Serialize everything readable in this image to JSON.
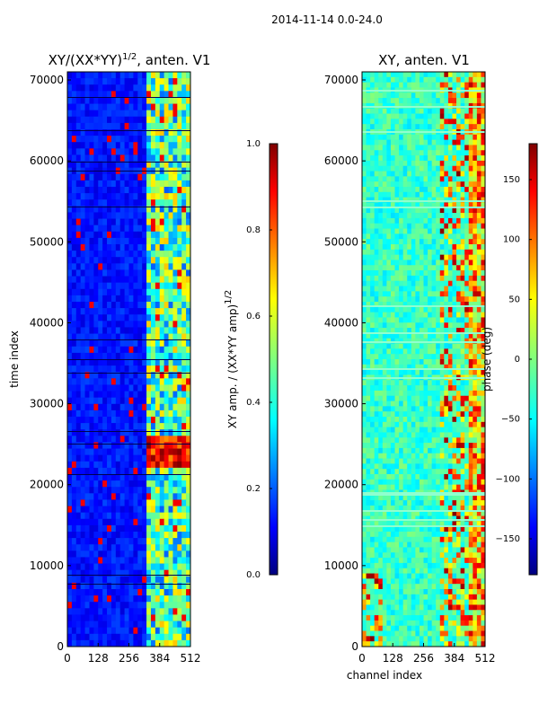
{
  "figure": {
    "suptitle": "2014-11-14 0.0-24.0"
  },
  "chart_data": [
    {
      "type": "heatmap",
      "title_main": "XY/(XX*YY)",
      "title_exp": "1/2",
      "title_suffix": ", anten. V1",
      "xlabel": "",
      "ylabel": "time index",
      "xlim": [
        0,
        512
      ],
      "ylim": [
        0,
        71000
      ],
      "xticks": [
        0,
        128,
        256,
        384,
        512
      ],
      "yticks": [
        0,
        10000,
        20000,
        30000,
        40000,
        50000,
        60000,
        70000
      ],
      "colorbar": {
        "label_main": "XY amp. / (XX*YY amp)",
        "label_exp": "1/2",
        "range": [
          0.0,
          1.0
        ],
        "ticks": [
          "0.0",
          "0.2",
          "0.4",
          "0.6",
          "0.8",
          "1.0"
        ],
        "colormap": "jet"
      }
    },
    {
      "type": "heatmap",
      "title": "XY, anten. V1",
      "xlabel": "channel index",
      "ylabel": "",
      "xlim": [
        0,
        512
      ],
      "ylim": [
        0,
        71000
      ],
      "xticks": [
        0,
        128,
        256,
        384,
        512
      ],
      "yticks": [
        0,
        10000,
        20000,
        30000,
        40000,
        50000,
        60000,
        70000
      ],
      "colorbar": {
        "label": "phase (deg)",
        "range": [
          -180,
          180
        ],
        "ticks": [
          "−150",
          "−100",
          "−50",
          "0",
          "50",
          "100",
          "150"
        ],
        "tick_values": [
          -150,
          -100,
          -50,
          0,
          50,
          100,
          150
        ],
        "colormap": "jet"
      }
    }
  ],
  "colors": {
    "jet": [
      "#00007f",
      "#0000ff",
      "#007fff",
      "#00ffff",
      "#7fff7f",
      "#ffff00",
      "#ff7f00",
      "#ff0000",
      "#7f0000"
    ]
  }
}
